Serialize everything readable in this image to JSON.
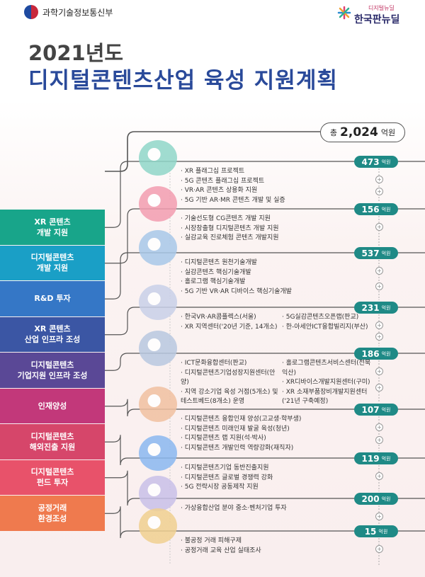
{
  "header": {
    "ministry": "과학기술정보통신부",
    "brand_small": "디지털뉴딜",
    "brand": "한국판뉴딜"
  },
  "title": {
    "year": "2021년도",
    "main": "디지털콘텐츠산업 육성 지원계획"
  },
  "total": {
    "prefix": "총",
    "amount": "2,024",
    "unit": "억원"
  },
  "categories": [
    {
      "lines": [
        "XR 콘텐츠",
        "개발 지원"
      ],
      "color": "#18a58a"
    },
    {
      "lines": [
        "디지털콘텐츠",
        "개발 지원"
      ],
      "color": "#1a9fc6"
    },
    {
      "lines": [
        "R&D 투자"
      ],
      "color": "#3577c6"
    },
    {
      "lines": [
        "XR 콘텐츠",
        "산업 인프라 조성"
      ],
      "color": "#3b56a4"
    },
    {
      "lines": [
        "디지털콘텐츠",
        "기업지원 인프라 조성"
      ],
      "color": "#5a4896"
    },
    {
      "lines": [
        "인재양성"
      ],
      "color": "#c2387a"
    },
    {
      "lines": [
        "디지털콘텐츠",
        "해외진출 지원"
      ],
      "color": "#d6466a"
    },
    {
      "lines": [
        "디지털콘텐츠",
        "펀드 투자"
      ],
      "color": "#e8526a"
    },
    {
      "lines": [
        "공정거래",
        "환경조성"
      ],
      "color": "#ef7a4e"
    }
  ],
  "sections": [
    {
      "amount": "473",
      "unit": "억원",
      "items": [
        "XR 플래그십 프로젝트",
        "5G 콘텐츠 플래그십 프로젝트",
        "VR·AR 콘텐츠 상용화 지원",
        "5G 기반 AR·MR 콘텐츠 개발 및 실증"
      ]
    },
    {
      "amount": "156",
      "unit": "억원",
      "items": [
        "기술선도형 CG콘텐츠 개발 지원",
        "시장창출형 디지털콘텐츠 개발 지원",
        "실감교육 진로체험 콘텐츠 개발지원"
      ]
    },
    {
      "amount": "537",
      "unit": "억원",
      "items": [
        "디지털콘텐츠 원천기술개발",
        "실감콘텐츠 핵심기술개발",
        "홀로그램 핵심기술개발",
        "5G 기반 VR·AR 디바이스 핵심기술개발"
      ]
    },
    {
      "amount": "231",
      "unit": "억원",
      "items": [
        "한국VR·AR콤플렉스(서울)",
        "XR 지역센터('20년 기준, 14개소)"
      ],
      "items_right": [
        "5G실감콘텐츠오픈랩(판교)",
        "한-아세안ICT융합빌리지(부산)"
      ]
    },
    {
      "amount": "186",
      "unit": "억원",
      "items": [
        "ICT문화융합센터(판교)",
        "디지털콘텐츠기업성장지원센터(안양)",
        "지역 강소기업 육성 거점(5개소) 및 테스트베드(8개소) 운영"
      ],
      "items_right": [
        "홀로그램콘텐츠서비스센터(전북 익산)",
        "XR디바이스개발지원센터(구미)",
        "XR 소재부품장비개발지원센터 ('21년 구축예정)"
      ]
    },
    {
      "amount": "107",
      "unit": "억원",
      "items": [
        "디지털콘텐츠 융합인재 양성(고교생·학부생)",
        "디지털콘텐츠 미래인재 발굴 육성(청년)",
        "디지털콘텐츠 랩 지원(석·박사)",
        "디지털콘텐츠 개발인력 역량강화(재직자)"
      ]
    },
    {
      "amount": "119",
      "unit": "억원",
      "items": [
        "디지털콘텐츠기업 동반진출지원",
        "디지털콘텐츠 글로벌 경쟁력 강화",
        "5G 전략시장 공동제작 지원"
      ]
    },
    {
      "amount": "200",
      "unit": "억원",
      "items": [
        "가상융합산업 분야 중소·벤처기업 투자"
      ]
    },
    {
      "amount": "15",
      "unit": "억원",
      "items": [
        "불공정 거래 피해구제",
        "공정거래 교육 산업 실태조사"
      ]
    }
  ]
}
